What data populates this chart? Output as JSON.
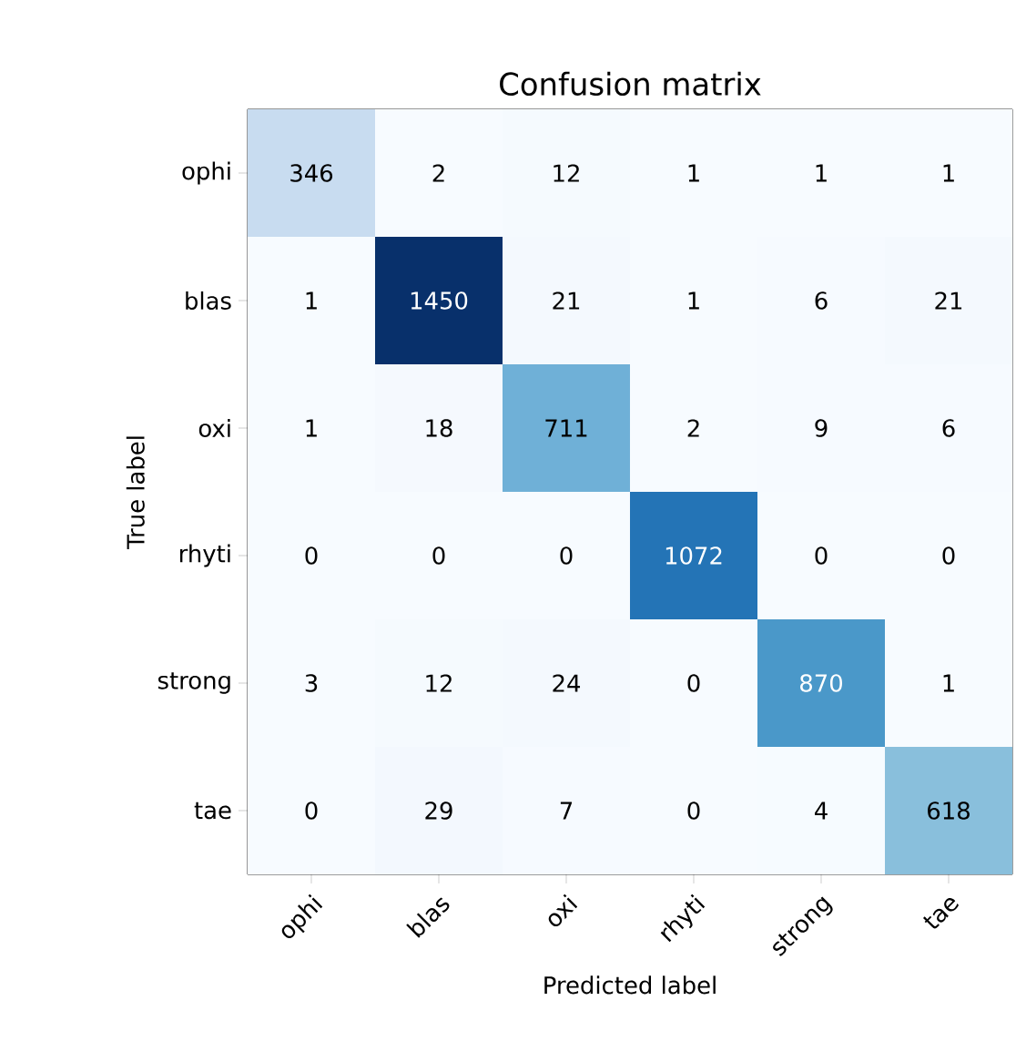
{
  "chart_data": {
    "type": "heatmap",
    "title": "Confusion matrix",
    "xlabel": "Predicted label",
    "ylabel": "True label",
    "data_labels": true,
    "categories": [
      "ophi",
      "blas",
      "oxi",
      "rhyti",
      "strong",
      "tae"
    ],
    "y_categories": [
      "ophi",
      "blas",
      "oxi",
      "rhyti",
      "strong",
      "tae"
    ],
    "cells": [
      [
        346,
        2,
        12,
        1,
        1,
        1
      ],
      [
        1,
        1450,
        21,
        1,
        6,
        21
      ],
      [
        1,
        18,
        711,
        2,
        9,
        6
      ],
      [
        0,
        0,
        0,
        1072,
        0,
        0
      ],
      [
        3,
        12,
        24,
        0,
        870,
        1
      ],
      [
        0,
        29,
        7,
        0,
        4,
        618
      ]
    ]
  }
}
